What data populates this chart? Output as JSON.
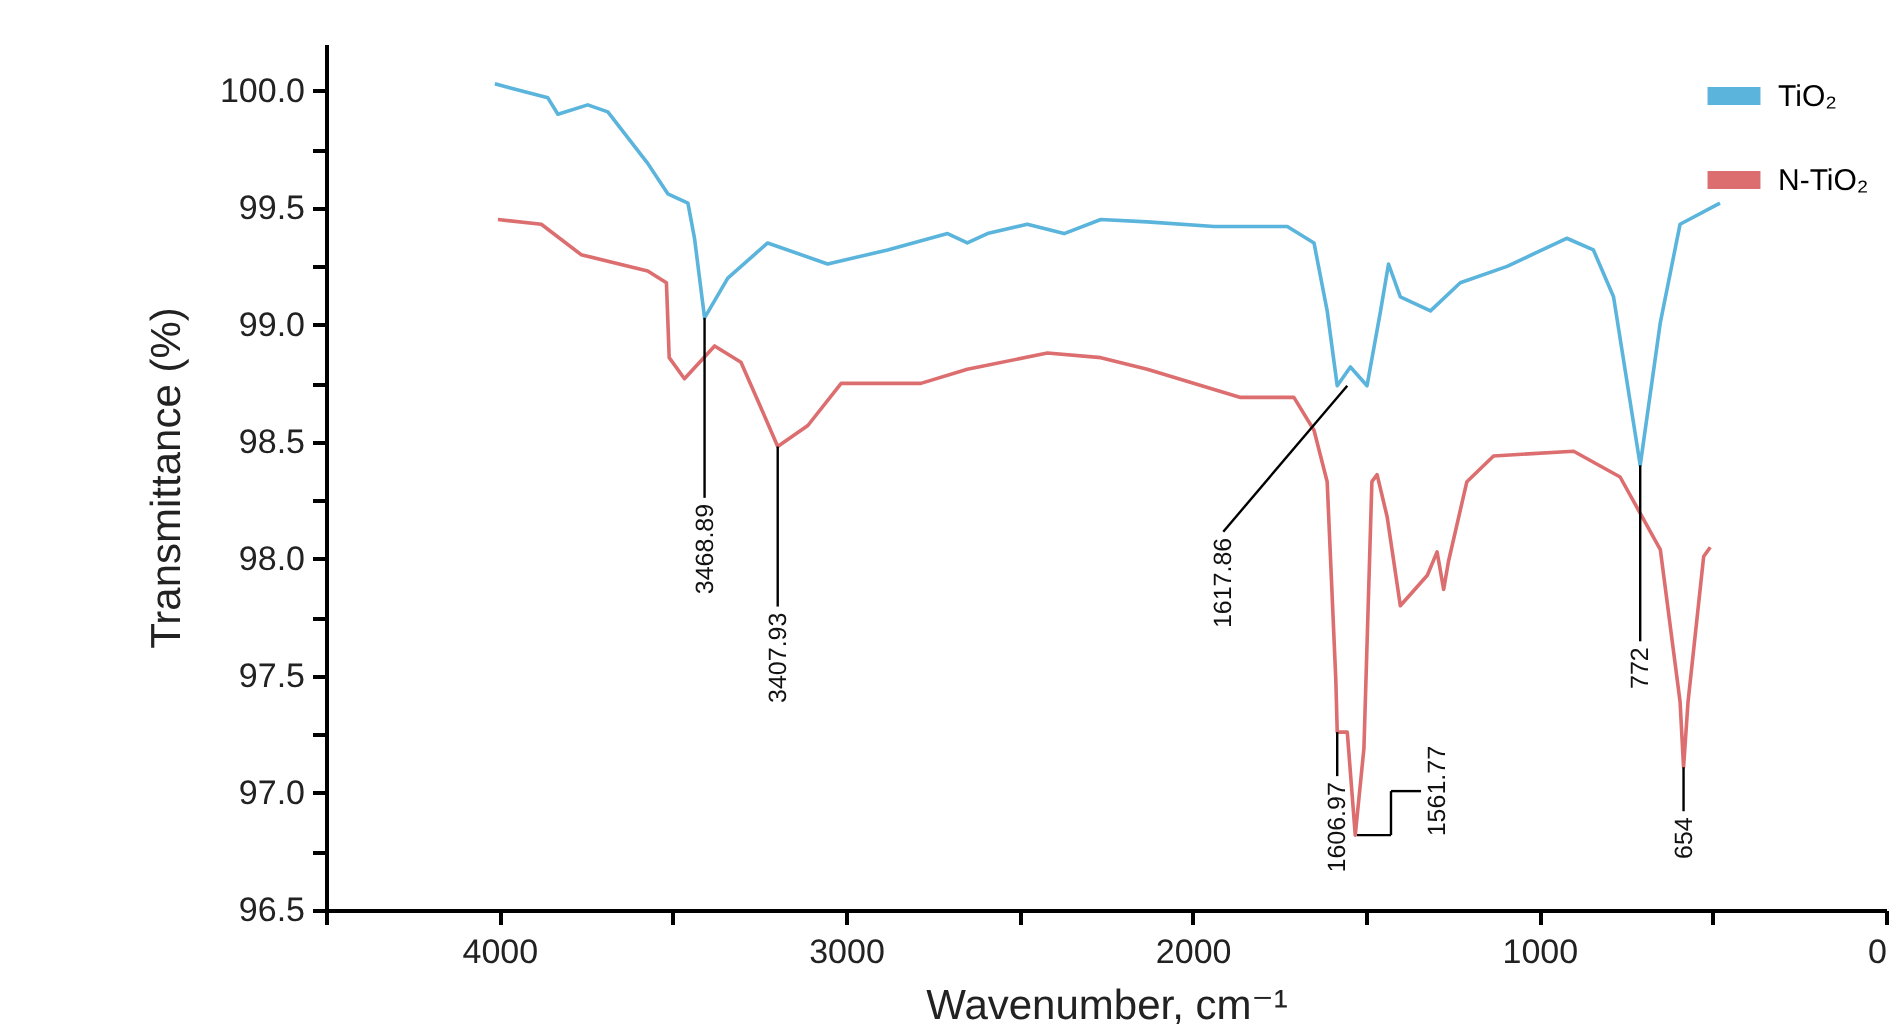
{
  "chart_data": {
    "type": "line",
    "xlabel": "Wavenumber, cm⁻¹",
    "ylabel": "Transmittance (%)",
    "xlim": [
      4500,
      0
    ],
    "ylim": [
      96.5,
      100.2
    ],
    "xticks": [
      {
        "value": 4500,
        "label": null
      },
      4000,
      {
        "value": 3500,
        "label": null
      },
      3000,
      {
        "value": 2500,
        "label": null
      },
      2000,
      {
        "value": 1500,
        "label": null
      },
      1000,
      {
        "value": 500,
        "label": null
      },
      0
    ],
    "yticks": [
      96.5,
      {
        "value": 96.75,
        "label": null
      },
      {
        "value": 97,
        "label": "97.0"
      },
      {
        "value": 97.25,
        "label": null
      },
      97.5,
      {
        "value": 97.75,
        "label": null
      },
      {
        "value": 98,
        "label": "98.0"
      },
      {
        "value": 98.25,
        "label": null
      },
      98.5,
      {
        "value": 98.75,
        "label": null
      },
      {
        "value": 99,
        "label": "99.0"
      },
      {
        "value": 99.25,
        "label": null
      },
      99.5,
      {
        "value": 99.75,
        "label": null
      },
      {
        "value": 100,
        "label": "100.0"
      }
    ],
    "legend": "top right",
    "series": [
      {
        "name": "TiO₂",
        "color": "#5ab4dc",
        "x": [
          4013,
          3860,
          3831,
          3745,
          3687,
          3572,
          3514,
          3456,
          3437,
          3408,
          3341,
          3226,
          3053,
          2880,
          2707,
          2650,
          2592,
          2477,
          2371,
          2265,
          2131,
          1938,
          1727,
          1650,
          1612,
          1583,
          1545,
          1497,
          1458,
          1435,
          1401,
          1314,
          1228,
          1093,
          921,
          844,
          786,
          709,
          651,
          594,
          479
        ],
        "values": [
          100.03,
          99.97,
          99.9,
          99.94,
          99.91,
          99.69,
          99.56,
          99.52,
          99.37,
          99.03,
          99.2,
          99.35,
          99.26,
          99.32,
          99.39,
          99.35,
          99.39,
          99.43,
          99.39,
          99.45,
          99.44,
          99.42,
          99.42,
          99.35,
          99.06,
          98.74,
          98.82,
          98.74,
          99.06,
          99.26,
          99.12,
          99.06,
          99.18,
          99.25,
          99.37,
          99.32,
          99.12,
          98.4,
          99.01,
          99.43,
          99.52
        ]
      },
      {
        "name": "N-TiO₂",
        "color": "#dc6e70",
        "x": [
          4004,
          3879,
          3764,
          3572,
          3518,
          3510,
          3466,
          3379,
          3303,
          3226,
          3197,
          3110,
          3014,
          2784,
          2650,
          2419,
          2265,
          2131,
          1862,
          1708,
          1650,
          1612,
          1587,
          1583,
          1554,
          1531,
          1506,
          1483,
          1468,
          1439,
          1401,
          1323,
          1295,
          1276,
          1262,
          1209,
          1132,
          901,
          767,
          651,
          594,
          584,
          571,
          526,
          507
        ],
        "values": [
          99.45,
          99.43,
          99.3,
          99.23,
          99.18,
          98.86,
          98.77,
          98.91,
          98.84,
          98.58,
          98.48,
          98.57,
          98.75,
          98.75,
          98.81,
          98.88,
          98.86,
          98.81,
          98.69,
          98.69,
          98.55,
          98.33,
          97.48,
          97.26,
          97.26,
          96.82,
          97.19,
          98.33,
          98.36,
          98.18,
          97.8,
          97.93,
          98.03,
          97.87,
          97.99,
          98.33,
          98.44,
          98.46,
          98.35,
          98.04,
          97.39,
          97.11,
          97.39,
          98.01,
          98.05
        ]
      }
    ],
    "annotations": [
      {
        "text": "3468.89",
        "x": 3408,
        "y": 99.03
      },
      {
        "text": "3407.93",
        "x": 3197,
        "y": 98.48
      },
      {
        "text": "1617.86",
        "x": 1554,
        "y": 98.74
      },
      {
        "text": "1606.97",
        "x": 1583,
        "y": 97.26
      },
      {
        "text": "1561.77",
        "x": 1526,
        "y": 96.82
      },
      {
        "text": "772",
        "x": 709,
        "y": 98.4
      },
      {
        "text": "654",
        "x": 584,
        "y": 97.11
      }
    ]
  }
}
